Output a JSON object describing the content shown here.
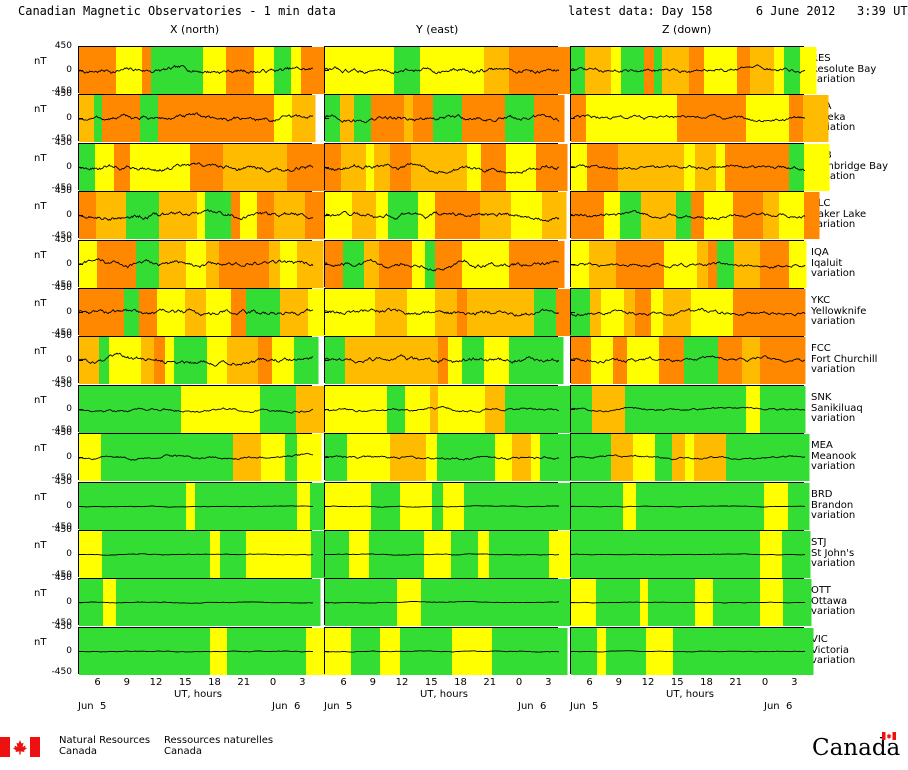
{
  "header": {
    "title": "Canadian Magnetic Observatories - 1 min data",
    "latest": "latest data: Day 158      6 June 2012   3:39 UT"
  },
  "columns": [
    "X (north)",
    "Y (east)",
    "Z (down)"
  ],
  "axis": {
    "unit": "nT",
    "y_ticks": [
      "450",
      "0",
      "-450"
    ],
    "x_ticks": [
      "6",
      "9",
      "12",
      "15",
      "18",
      "21",
      "0",
      "3"
    ],
    "x_title": "UT, hours",
    "date_start": "Jun  5",
    "date_end": "Jun  6"
  },
  "colors": {
    "quiet": "#33dd33",
    "unsettled": "#ffff00",
    "active": "#ffbb00",
    "storm": "#ff8800",
    "trace": "#000000"
  },
  "chart_data": {
    "type": "line",
    "x_range_hours": [
      4,
      28
    ],
    "ylim": [
      -450,
      450
    ],
    "stations": [
      {
        "code": "RES",
        "name": "Resolute Bay",
        "label": "variation",
        "activity": "high"
      },
      {
        "code": "EUA",
        "name": "Eureka",
        "label": "variation",
        "activity": "high"
      },
      {
        "code": "CBB",
        "name": "Cambridge Bay",
        "label": "variation",
        "activity": "high"
      },
      {
        "code": "BLC",
        "name": "Baker Lake",
        "label": "variation",
        "activity": "high"
      },
      {
        "code": "IQA",
        "name": "Iqaluit",
        "label": "variation",
        "activity": "high"
      },
      {
        "code": "YKC",
        "name": "Yellowknife",
        "label": "variation",
        "activity": "high"
      },
      {
        "code": "FCC",
        "name": "Fort Churchill",
        "label": "variation",
        "activity": "high"
      },
      {
        "code": "SNK",
        "name": "Sanikiluaq",
        "label": "variation",
        "activity": "medium"
      },
      {
        "code": "MEA",
        "name": "Meanook",
        "label": "variation",
        "activity": "medium"
      },
      {
        "code": "BRD",
        "name": "Brandon",
        "label": "variation",
        "activity": "low"
      },
      {
        "code": "STJ",
        "name": "St John's",
        "label": "variation",
        "activity": "low"
      },
      {
        "code": "OTT",
        "name": "Ottawa",
        "label": "variation",
        "activity": "low"
      },
      {
        "code": "VIC",
        "name": "Victoria",
        "label": "variation",
        "activity": "low"
      }
    ]
  },
  "footer": {
    "agency_en_1": "Natural Resources",
    "agency_en_2": "Canada",
    "agency_fr_1": "Ressources naturelles",
    "agency_fr_2": "Canada",
    "wordmark": "Canada"
  }
}
